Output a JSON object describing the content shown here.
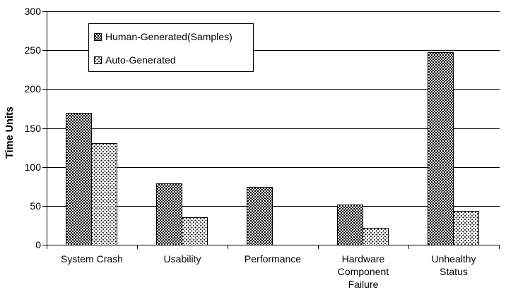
{
  "chart_data": {
    "type": "bar",
    "title": "",
    "xlabel": "",
    "ylabel": "Time Units",
    "ylim": [
      0,
      300
    ],
    "yticks": [
      0,
      50,
      100,
      150,
      200,
      250,
      300
    ],
    "grid": true,
    "legend_position": "top-left-inside",
    "categories": [
      "System Crash",
      "Usability",
      "Performance",
      "Hardware Component Failure",
      "Unhealthy Status"
    ],
    "category_label_lines": [
      [
        "System Crash"
      ],
      [
        "Usability"
      ],
      [
        "Performance"
      ],
      [
        "Hardware",
        "Component",
        "Failure"
      ],
      [
        "Unhealthy",
        "Status"
      ]
    ],
    "series": [
      {
        "name": "Human-Generated(Samples)",
        "pattern": "checker",
        "values": [
          170,
          80,
          75,
          53,
          248
        ]
      },
      {
        "name": "Auto-Generated",
        "pattern": "dots",
        "values": [
          131,
          36,
          0,
          23,
          44
        ]
      }
    ]
  },
  "colors": {
    "foreground": "#000000",
    "background": "#ffffff"
  }
}
